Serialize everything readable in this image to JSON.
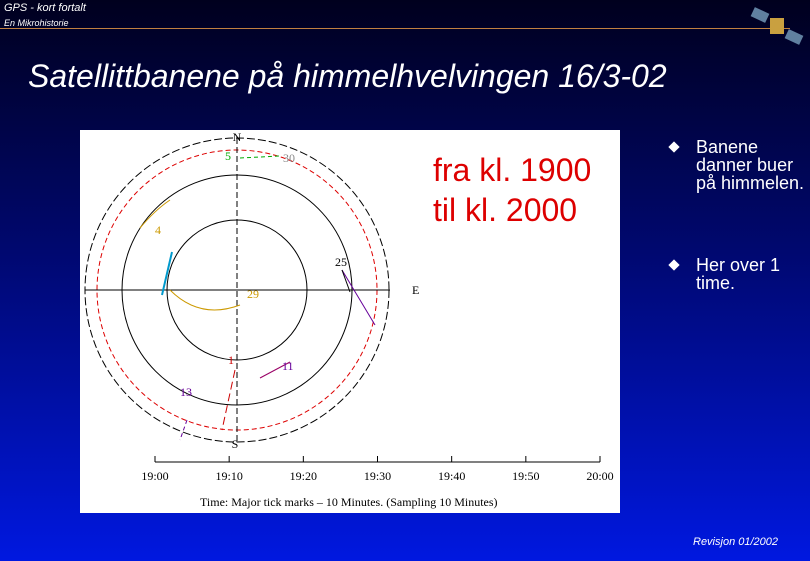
{
  "header": {
    "title": "GPS - kort fortalt",
    "subtitle": "En Mikrohistorie",
    "logo_alt": null
  },
  "slide": {
    "title": "Satellittbanene på himmelhvelvingen  16/3-02",
    "skyplot": {
      "north": "N",
      "south": "S",
      "east": "E",
      "satellites": [
        "5",
        "30",
        "4",
        "25",
        "29",
        "1",
        "11",
        "13"
      ],
      "time_ticks": [
        "19:00",
        "19:10",
        "19:20",
        "19:30",
        "19:40",
        "19:50",
        "20:00"
      ],
      "caption": "Time: Major tick marks – 10 Minutes. (Sampling 10 Minutes)"
    },
    "note": [
      "fra kl. 1900",
      "til kl. 2000"
    ],
    "bullets": [
      "Banene danner buer på himmelen.",
      "Her over 1 time."
    ]
  },
  "footer": {
    "revision": "Revisjon 01/2002"
  }
}
